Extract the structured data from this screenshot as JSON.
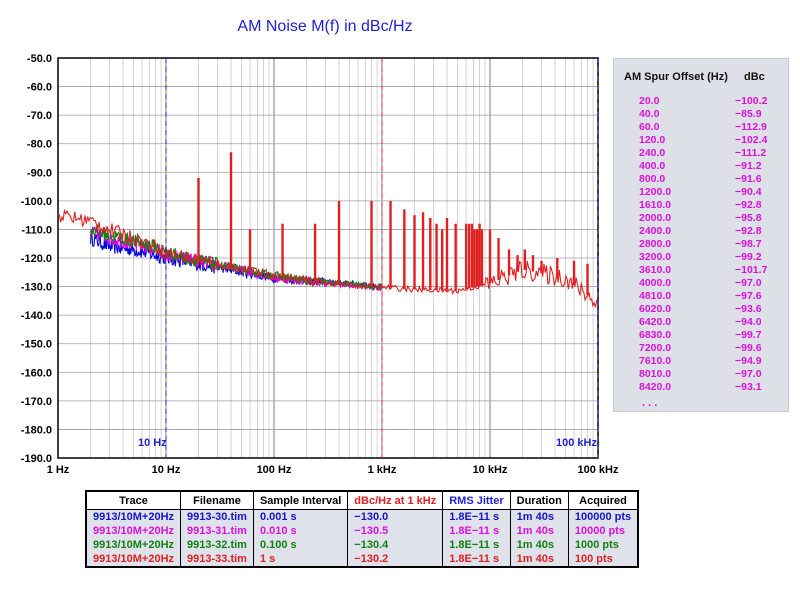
{
  "chart_data": {
    "type": "line",
    "title": "AM Noise M(f) in dBc/Hz",
    "xscale": "log",
    "xlim": [
      1,
      100000
    ],
    "ylim": [
      -190,
      -50
    ],
    "ystep": 10,
    "grid": true,
    "x_tick_labels": [
      "1 Hz",
      "10 Hz",
      "100 Hz",
      "1 kHz",
      "10 kHz",
      "100 kHz"
    ],
    "y_tick_labels": [
      "-50.0",
      "-60.0",
      "-70.0",
      "-80.0",
      "-90.0",
      "-100.0",
      "-110.0",
      "-120.0",
      "-130.0",
      "-140.0",
      "-150.0",
      "-160.0",
      "-170.0",
      "-180.0",
      "-190.0"
    ],
    "markers": [
      {
        "x": 10,
        "label": "10 Hz",
        "color": "#1f1fd0",
        "label_side": "right"
      },
      {
        "x": 1000,
        "label": "",
        "color": "#e02020"
      },
      {
        "x": 100000,
        "label": "100 kHz",
        "color": "#1f1fd0",
        "label_side": "left"
      }
    ],
    "series": [
      {
        "color": "#0000e0",
        "points": [
          [
            2,
            -113
          ],
          [
            3,
            -116
          ],
          [
            5,
            -117
          ],
          [
            8,
            -119
          ],
          [
            10,
            -120
          ],
          [
            20,
            -122
          ],
          [
            50,
            -125
          ],
          [
            100,
            -127
          ],
          [
            200,
            -128
          ],
          [
            500,
            -129
          ],
          [
            1000,
            -130
          ]
        ]
      },
      {
        "color": "#e000e0",
        "points": [
          [
            2,
            -111
          ],
          [
            3,
            -113
          ],
          [
            5,
            -115
          ],
          [
            8,
            -117
          ],
          [
            10,
            -119
          ],
          [
            20,
            -121
          ],
          [
            50,
            -124
          ],
          [
            100,
            -127
          ],
          [
            200,
            -128
          ],
          [
            500,
            -129.5
          ],
          [
            1000,
            -130.5
          ]
        ]
      },
      {
        "color": "#108010",
        "points": [
          [
            2,
            -110
          ],
          [
            3,
            -112
          ],
          [
            5,
            -114
          ],
          [
            8,
            -116
          ],
          [
            10,
            -118
          ],
          [
            20,
            -121
          ],
          [
            50,
            -124
          ],
          [
            100,
            -126
          ],
          [
            200,
            -128
          ],
          [
            500,
            -129
          ],
          [
            1000,
            -130.4
          ]
        ]
      },
      {
        "color": "#e02020",
        "points": [
          [
            1,
            -105
          ],
          [
            2,
            -107
          ],
          [
            3,
            -110
          ],
          [
            5,
            -113
          ],
          [
            8,
            -116
          ],
          [
            10,
            -118
          ],
          [
            20,
            -121
          ],
          [
            50,
            -124
          ],
          [
            100,
            -126
          ],
          [
            200,
            -128
          ],
          [
            500,
            -129.5
          ],
          [
            1000,
            -130.2
          ],
          [
            2000,
            -131
          ],
          [
            5000,
            -131.5
          ],
          [
            10000,
            -129
          ],
          [
            20000,
            -124
          ],
          [
            50000,
            -127
          ],
          [
            100000,
            -136
          ]
        ]
      }
    ],
    "spurs": [
      [
        20,
        -92
      ],
      [
        40,
        -83
      ],
      [
        60,
        -110
      ],
      [
        120,
        -108
      ],
      [
        240,
        -108
      ],
      [
        400,
        -100
      ],
      [
        800,
        -100
      ],
      [
        1200,
        -100
      ],
      [
        1610,
        -103
      ],
      [
        2000,
        -105
      ],
      [
        2400,
        -104
      ],
      [
        2800,
        -106
      ],
      [
        3200,
        -108
      ],
      [
        3610,
        -110
      ],
      [
        4000,
        -106
      ],
      [
        4810,
        -108
      ],
      [
        6020,
        -108
      ],
      [
        6420,
        -108
      ],
      [
        6830,
        -108
      ],
      [
        7200,
        -110
      ],
      [
        7610,
        -110
      ],
      [
        8010,
        -108
      ],
      [
        8420,
        -110
      ],
      [
        10000,
        -110
      ],
      [
        12000,
        -113
      ],
      [
        15000,
        -117
      ],
      [
        18000,
        -119
      ],
      [
        21000,
        -117
      ],
      [
        25000,
        -119
      ],
      [
        30000,
        -121
      ],
      [
        42000,
        -120
      ],
      [
        60000,
        -121
      ],
      [
        80000,
        -122
      ]
    ]
  },
  "spur_table": {
    "header_offset": "AM Spur Offset (Hz)",
    "header_dbc": "dBc",
    "rows": [
      {
        "offset": "20.0",
        "dbc": "−100.2"
      },
      {
        "offset": "40.0",
        "dbc": "−85.9"
      },
      {
        "offset": "60.0",
        "dbc": "−112.9"
      },
      {
        "offset": "120.0",
        "dbc": "−102.4"
      },
      {
        "offset": "240.0",
        "dbc": "−111.2"
      },
      {
        "offset": "400.0",
        "dbc": "−91.2"
      },
      {
        "offset": "800.0",
        "dbc": "−91.6"
      },
      {
        "offset": "1200.0",
        "dbc": "−90.4"
      },
      {
        "offset": "1610.0",
        "dbc": "−92.8"
      },
      {
        "offset": "2000.0",
        "dbc": "−95.8"
      },
      {
        "offset": "2400.0",
        "dbc": "−92.8"
      },
      {
        "offset": "2800.0",
        "dbc": "−98.7"
      },
      {
        "offset": "3200.0",
        "dbc": "−99.2"
      },
      {
        "offset": "3610.0",
        "dbc": "−101.7"
      },
      {
        "offset": "4000.0",
        "dbc": "−97.0"
      },
      {
        "offset": "4810.0",
        "dbc": "−97.6"
      },
      {
        "offset": "6020.0",
        "dbc": "−93.6"
      },
      {
        "offset": "6420.0",
        "dbc": "−94.0"
      },
      {
        "offset": "6830.0",
        "dbc": "−99.7"
      },
      {
        "offset": "7200.0",
        "dbc": "−99.6"
      },
      {
        "offset": "7610.0",
        "dbc": "−94.9"
      },
      {
        "offset": "8010.0",
        "dbc": "−97.0"
      },
      {
        "offset": "8420.0",
        "dbc": "−93.1"
      }
    ],
    "more": ". . ."
  },
  "trace_table": {
    "headers": [
      "Trace",
      "Filename",
      "Sample Interval",
      "dBc/Hz at 1 kHz",
      "RMS Jitter",
      "Duration",
      "Acquired"
    ],
    "header_colors": [
      "#000000",
      "#000000",
      "#000000",
      "#e02020",
      "#1f1fd0",
      "#000000",
      "#000000"
    ],
    "rows": [
      {
        "color": "#1414c8",
        "cells": [
          "9913/10M+20Hz",
          "9913-30.tim",
          "0.001 s",
          "−130.0",
          "1.8E−11 s",
          "1m 40s",
          "100000 pts"
        ]
      },
      {
        "color": "#dd10dd",
        "cells": [
          "9913/10M+20Hz",
          "9913-31.tim",
          "0.010 s",
          "−130.5",
          "1.8E−11 s",
          "1m 40s",
          "10000 pts"
        ]
      },
      {
        "color": "#108010",
        "cells": [
          "9913/10M+20Hz",
          "9913-32.tim",
          "0.100 s",
          "−130.4",
          "1.8E−11 s",
          "1m 40s",
          "1000 pts"
        ]
      },
      {
        "color": "#e02020",
        "cells": [
          "9913/10M+20Hz",
          "9913-33.tim",
          "1 s",
          "−130.2",
          "1.8E−11 s",
          "1m 40s",
          "100 pts"
        ]
      }
    ]
  }
}
